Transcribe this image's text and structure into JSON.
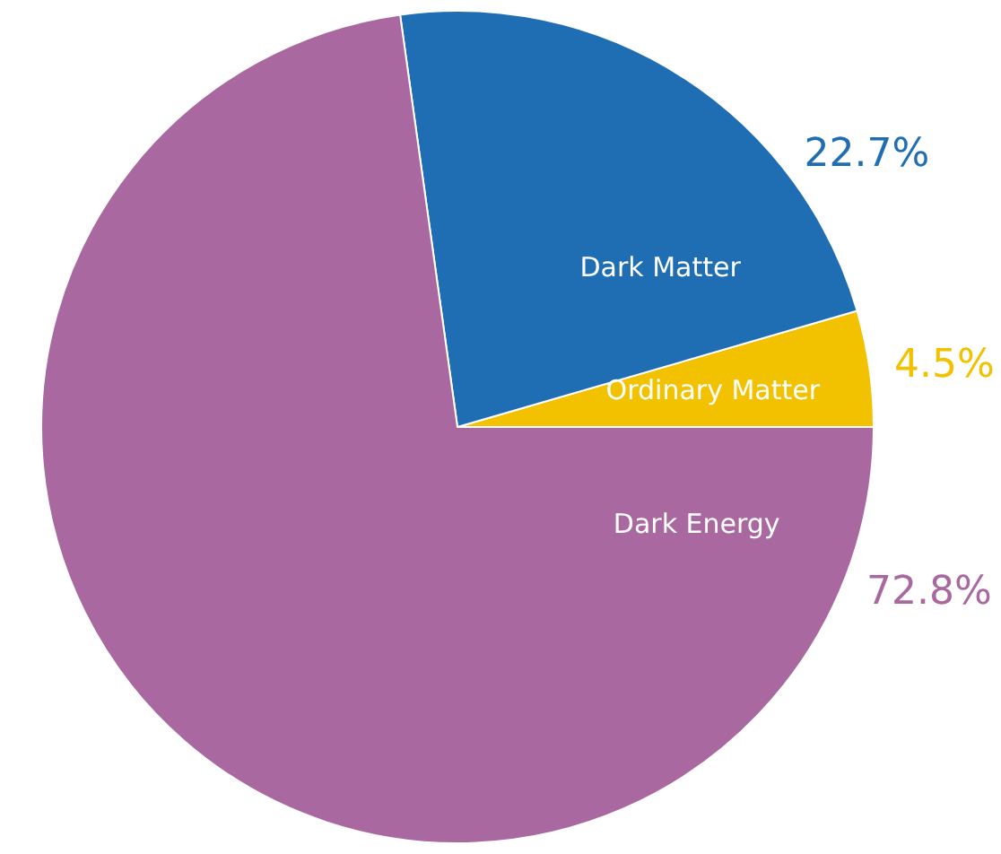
{
  "chart_data": {
    "type": "pie",
    "categories": [
      "Ordinary Matter",
      "Dark Matter",
      "Dark Energy"
    ],
    "values": [
      4.5,
      22.7,
      72.8
    ],
    "colors": [
      "#f2c200",
      "#1f6db3",
      "#a9689f"
    ],
    "value_labels": [
      "4.5%",
      "22.7%",
      "72.8%"
    ]
  }
}
